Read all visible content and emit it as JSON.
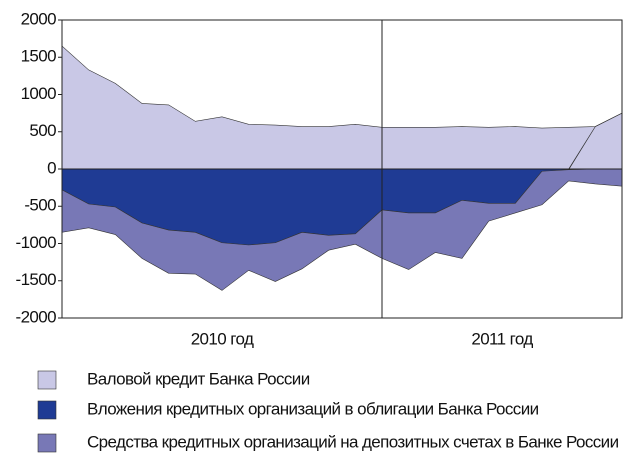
{
  "chart_data": {
    "type": "stacked_area",
    "x_labels": [
      "2010 год",
      "2011 год"
    ],
    "ylim": [
      -2000,
      2000
    ],
    "yticks": [
      2000,
      1500,
      1000,
      500,
      0,
      -500,
      -1000,
      -1500,
      -2000
    ],
    "series": [
      {
        "name": "Валовой кредит Банка России",
        "color": "#c9c8e6",
        "values": [
          1650,
          1330,
          1150,
          880,
          860,
          640,
          700,
          600,
          590,
          570,
          570,
          600,
          560,
          560,
          560,
          570,
          560,
          570,
          550,
          560,
          570,
          750
        ]
      },
      {
        "name": "Вложения кредитных организаций в облигации Банка России",
        "color": "#1f3b94",
        "values": [
          -280,
          -470,
          -510,
          -725,
          -820,
          -850,
          -990,
          -1020,
          -990,
          -850,
          -890,
          -870,
          -550,
          -590,
          -590,
          -420,
          -460,
          -460,
          -30,
          -10,
          0,
          0
        ]
      },
      {
        "name": "Средства кредитных организаций на депозитных счетах в Банке России",
        "color": "#7878b6",
        "values": [
          -570,
          -320,
          -370,
          -475,
          -580,
          -560,
          -640,
          -340,
          -520,
          -490,
          -200,
          -140,
          -650,
          -760,
          -530,
          -780,
          -240,
          -130,
          -450,
          -150,
          -200,
          -230
        ]
      }
    ]
  }
}
